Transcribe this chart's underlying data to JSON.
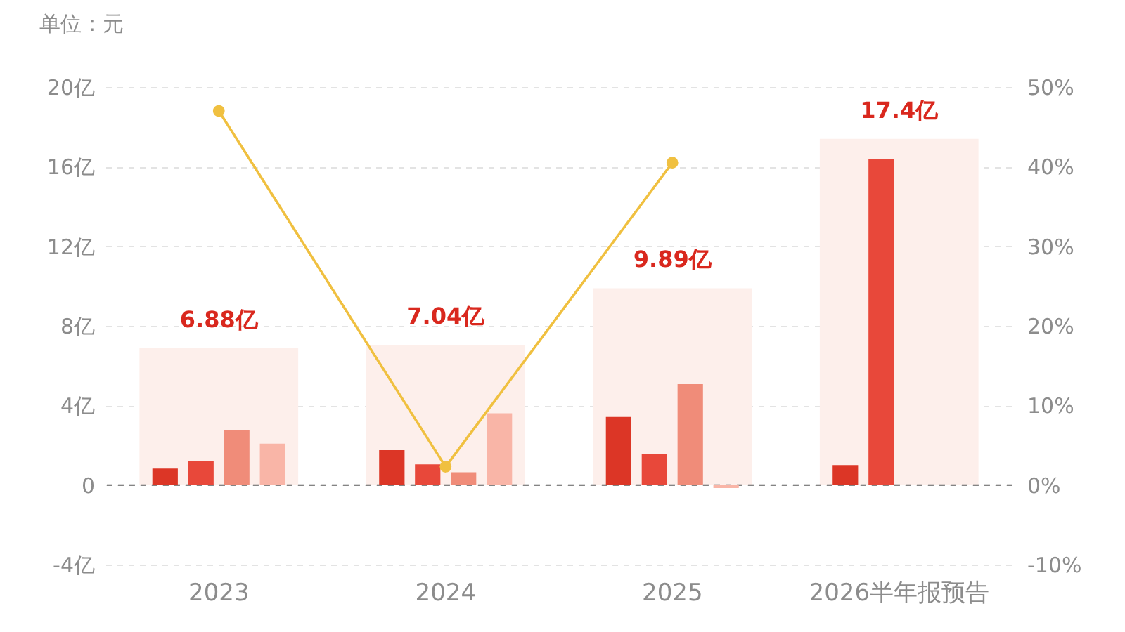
{
  "chart_data": {
    "type": "bar",
    "ylabel": "单位：元",
    "categories": [
      "2023",
      "2024",
      "2025",
      "2026半年报预告"
    ],
    "series": [
      {
        "color": "#fdefeb",
        "values": [
          6.88,
          7.04,
          9.89,
          17.4
        ],
        "value_labels": [
          "6.88亿",
          "7.04亿",
          "9.89亿",
          "17.4亿"
        ]
      },
      {
        "color": "#dc3626",
        "values": [
          0.83,
          1.75,
          3.42,
          1.0
        ]
      },
      {
        "color": "#e8483a",
        "values": [
          1.2,
          1.04,
          1.55,
          16.4
        ]
      },
      {
        "color": "#f08c79",
        "values": [
          2.77,
          0.64,
          5.07,
          null
        ]
      },
      {
        "color": "#f9b5a7",
        "values": [
          2.08,
          3.61,
          -0.15,
          null
        ]
      },
      {
        "type": "line",
        "axis": "y2",
        "color": "#f0c040",
        "values": [
          47.0,
          2.3,
          40.5,
          null
        ]
      }
    ],
    "ylim": [
      -4,
      20
    ],
    "yticks": [
      {
        "value": -4,
        "label": "-4亿"
      },
      0,
      {
        "value": 4,
        "label": "4亿"
      },
      {
        "value": 8,
        "label": "8亿"
      },
      {
        "value": 12,
        "label": "12亿"
      },
      {
        "value": 16,
        "label": "16亿"
      },
      {
        "value": 20,
        "label": "20亿"
      }
    ],
    "y2lim": [
      -10,
      50
    ],
    "y2ticks": [
      {
        "value": -10,
        "label": "-10%"
      },
      {
        "value": 0,
        "label": "0%"
      },
      {
        "value": 10,
        "label": "10%"
      },
      {
        "value": 20,
        "label": "20%"
      },
      {
        "value": 30,
        "label": "30%"
      },
      {
        "value": 40,
        "label": "40%"
      },
      {
        "value": 50,
        "label": "50%"
      }
    ],
    "ref_lines": [
      {
        "axis": "y",
        "value": 0,
        "color": "#666666",
        "line_style": "dashed"
      }
    ],
    "grid": "y",
    "marker": "circle"
  }
}
